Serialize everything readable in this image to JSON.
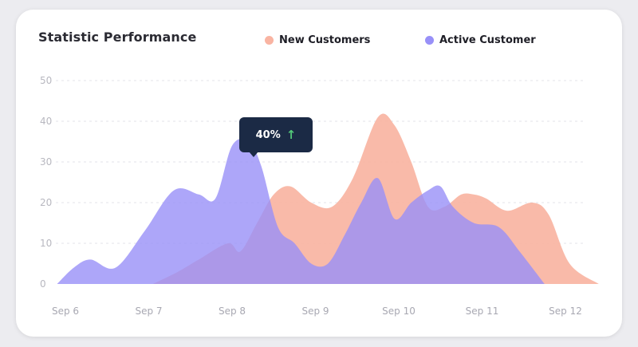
{
  "card": {
    "title": "Statistic Performance"
  },
  "tooltip": {
    "value": "40%",
    "arrow": "↑"
  },
  "chart_data": {
    "type": "area",
    "title": "Statistic Performance",
    "xlabel": "",
    "ylabel": "",
    "ylim": [
      0,
      50
    ],
    "yticks": [
      0,
      10,
      20,
      30,
      40,
      50
    ],
    "categories": [
      "Sep 6",
      "Sep 7",
      "Sep 8",
      "Sep 9",
      "Sep 10",
      "Sep 11",
      "Sep 12"
    ],
    "grid": true,
    "legend_position": "top",
    "series": [
      {
        "name": "New Customers",
        "color": "#f9b4a2",
        "x": [
          7.05,
          7.35,
          7.6,
          7.95,
          8.1,
          8.3,
          8.5,
          8.7,
          8.95,
          9.2,
          9.45,
          9.75,
          9.95,
          10.15,
          10.35,
          10.55,
          10.75,
          10.9,
          11.05,
          11.3,
          11.6,
          11.8,
          12.05,
          12.4
        ],
        "values": [
          0,
          3,
          6,
          10,
          8,
          15,
          22,
          24,
          20,
          19,
          26,
          41,
          39,
          30,
          19,
          19,
          22,
          22,
          21,
          18,
          20,
          17,
          5,
          0
        ]
      },
      {
        "name": "Active Customer",
        "color": "#9890f8",
        "x": [
          5.9,
          6.1,
          6.3,
          6.6,
          6.95,
          7.3,
          7.6,
          7.8,
          8.0,
          8.2,
          8.35,
          8.55,
          8.75,
          8.95,
          9.15,
          9.35,
          9.55,
          9.75,
          9.95,
          10.15,
          10.35,
          10.5,
          10.65,
          10.9,
          11.2,
          11.45,
          11.75
        ],
        "values": [
          0,
          4,
          6,
          4,
          13,
          23,
          22,
          21,
          34,
          35,
          29,
          14,
          10,
          5,
          5,
          12,
          20,
          26,
          16,
          20,
          23,
          24,
          19,
          15,
          14,
          8,
          0
        ]
      }
    ]
  },
  "legend": [
    {
      "label": "New Customers",
      "color": "#f9b4a2"
    },
    {
      "label": "Active Customer",
      "color": "#9890f8"
    }
  ]
}
